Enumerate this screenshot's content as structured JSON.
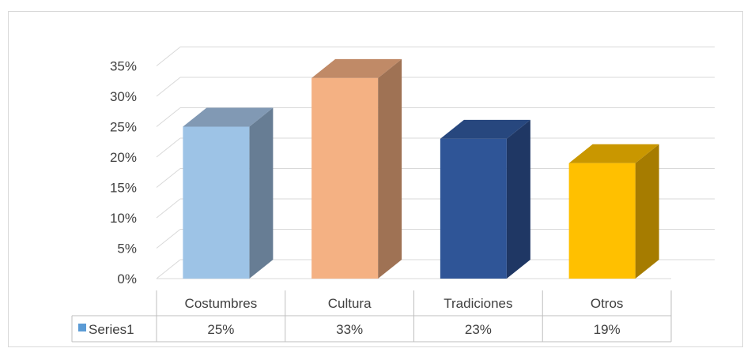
{
  "chart_data": {
    "type": "bar",
    "style": "3d-column-with-data-table",
    "categories": [
      "Costumbres",
      "Cultura",
      "Tradiciones",
      "Otros"
    ],
    "series": [
      {
        "name": "Series1",
        "values": [
          25,
          33,
          23,
          19
        ],
        "value_labels": [
          "25%",
          "33%",
          "23%",
          "19%"
        ]
      }
    ],
    "bar_colors": [
      "#9dc3e6",
      "#f4b183",
      "#2f5597",
      "#ffc000"
    ],
    "side_colors": [
      "#677d94",
      "#9f7254",
      "#1f3764",
      "#a67c00"
    ],
    "top_colors": [
      "#8199b4",
      "#c08a67",
      "#27477e",
      "#c99700"
    ],
    "legend_color": "#5b9bd5",
    "y_ticks": [
      "0%",
      "5%",
      "10%",
      "15%",
      "20%",
      "25%",
      "30%",
      "35%"
    ],
    "ylim": [
      0,
      35
    ],
    "grid": true,
    "legend": "data-table"
  }
}
